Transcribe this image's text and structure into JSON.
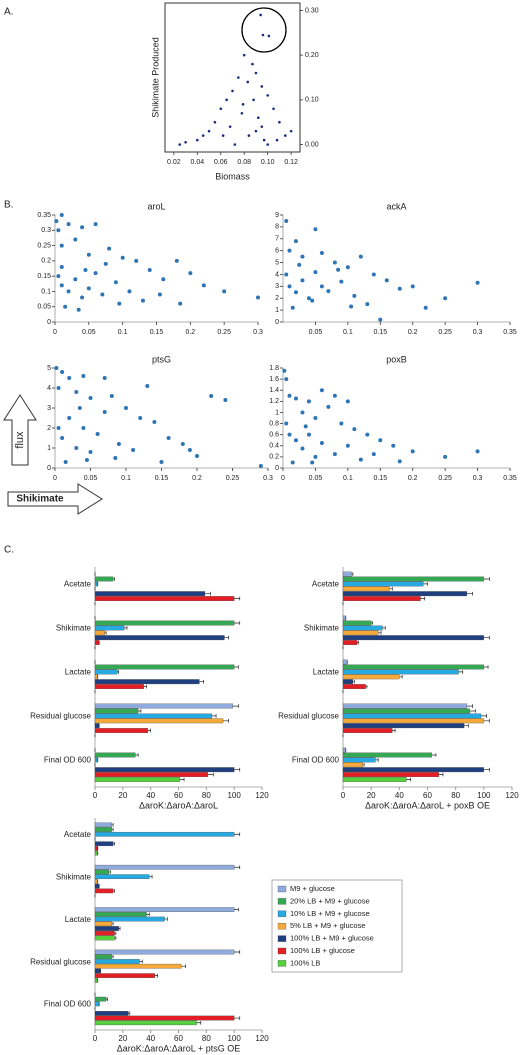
{
  "axis_arrows": {
    "y": "flux",
    "x": "Shikimate"
  },
  "chart_data": [
    {
      "type": "scatter",
      "panel_label": "A.",
      "x_label": "Biomass",
      "y_label": "Shikimate Produced",
      "y_axis_side": "right",
      "frame": true,
      "color": "#1a2a80",
      "xlim": [
        0.015,
        0.125
      ],
      "ylim": [
        -0.01,
        0.31
      ],
      "xticks": [
        0.02,
        0.04,
        0.06,
        0.08,
        {
          "value": 0.1,
          "label": "0.10"
        },
        0.12
      ],
      "yticks": [
        {
          "value": 0,
          "label": "0.00"
        },
        {
          "value": 0.1,
          "label": "0.10"
        },
        {
          "value": 0.2,
          "label": "0.20"
        },
        {
          "value": 0.3,
          "label": "0.30"
        }
      ],
      "x": [
        0.094,
        0.096,
        0.101,
        0.08,
        0.087,
        0.09,
        0.075,
        0.083,
        0.095,
        0.07,
        0.1,
        0.065,
        0.088,
        0.105,
        0.06,
        0.078,
        0.092,
        0.11,
        0.055,
        0.05,
        0.045,
        0.04,
        0.03,
        0.025,
        0.115,
        0.12,
        0.068,
        0.084,
        0.097,
        0.072,
        0.1,
        0.09,
        0.062,
        0.108,
        0.079,
        0.095
      ],
      "y": [
        0.29,
        0.245,
        0.243,
        0.2,
        0.18,
        0.16,
        0.15,
        0.14,
        0.13,
        0.12,
        0.11,
        0.1,
        0.1,
        0.08,
        0.08,
        0.07,
        0.06,
        0.05,
        0.05,
        0.03,
        0.02,
        0.01,
        0.005,
        0,
        0.02,
        0.03,
        0.04,
        0.02,
        0.01,
        0,
        0,
        0.03,
        0.02,
        0.01,
        0.09,
        0.04
      ]
    },
    {
      "type": "scatter",
      "panel_label": "B.",
      "title": "aroL",
      "color": "#2e75b6",
      "xlim": [
        0,
        0.3
      ],
      "ylim": [
        0,
        0.35
      ],
      "xticks": [
        0,
        0.05,
        0.1,
        0.15,
        0.2,
        0.25,
        0.3
      ],
      "yticks": [
        0,
        0.05,
        0.1,
        0.15,
        0.2,
        0.25,
        0.3,
        0.35
      ],
      "x": [
        0.002,
        0.01,
        0.005,
        0.02,
        0.04,
        0.06,
        0.01,
        0.03,
        0.05,
        0.08,
        0.1,
        0.12,
        0.14,
        0.16,
        0.18,
        0.2,
        0.22,
        0.3,
        0.25,
        0.005,
        0.01,
        0.02,
        0.03,
        0.04,
        0.05,
        0.06,
        0.07,
        0.09,
        0.11,
        0.13,
        0.015,
        0.035,
        0.01,
        0.045,
        0.075,
        0.095,
        0.155,
        0.185
      ],
      "y": [
        0.33,
        0.35,
        0.3,
        0.32,
        0.31,
        0.32,
        0.25,
        0.27,
        0.22,
        0.24,
        0.21,
        0.2,
        0.17,
        0.14,
        0.2,
        0.16,
        0.12,
        0.08,
        0.1,
        0.15,
        0.12,
        0.1,
        0.14,
        0.08,
        0.11,
        0.16,
        0.09,
        0.13,
        0.1,
        0.07,
        0.05,
        0.04,
        0.18,
        0.17,
        0.19,
        0.06,
        0.09,
        0.06
      ]
    },
    {
      "type": "scatter",
      "title": "ackA",
      "color": "#2e75b6",
      "xlim": [
        0,
        0.35
      ],
      "ylim": [
        0,
        9
      ],
      "xticks": [
        0.05,
        0.1,
        0.15,
        0.2,
        0.25,
        0.3,
        0.35
      ],
      "yticks": [
        0,
        1,
        2,
        3,
        4,
        5,
        6,
        7,
        8,
        9
      ],
      "x": [
        0.005,
        0.02,
        0.05,
        0.01,
        0.03,
        0.06,
        0.08,
        0.1,
        0.12,
        0.14,
        0.16,
        0.18,
        0.2,
        0.25,
        0.3,
        0.15,
        0.005,
        0.01,
        0.02,
        0.03,
        0.04,
        0.05,
        0.06,
        0.07,
        0.09,
        0.11,
        0.13,
        0.015,
        0.025,
        0.045,
        0.085,
        0.105,
        0.22
      ],
      "y": [
        8.5,
        6.8,
        7.8,
        6,
        5.5,
        5.8,
        5,
        4.6,
        5.5,
        4,
        3.5,
        2.8,
        3,
        2,
        3.3,
        0.2,
        4,
        3,
        2.5,
        3.5,
        2,
        4.2,
        3,
        2.6,
        3.4,
        2.2,
        1.5,
        1.2,
        4.8,
        1.8,
        4.4,
        1.3,
        1.2
      ]
    },
    {
      "type": "scatter",
      "title": "ptsG",
      "color": "#2e75b6",
      "xlim": [
        0,
        0.3
      ],
      "ylim": [
        0,
        5
      ],
      "xticks": [
        0,
        0.05,
        0.1,
        0.15,
        0.2,
        0.25,
        0.3
      ],
      "yticks": [
        0,
        1,
        2,
        3,
        4,
        5
      ],
      "x": [
        0.002,
        0.01,
        0.02,
        0.04,
        0.07,
        0.005,
        0.03,
        0.05,
        0.08,
        0.1,
        0.12,
        0.14,
        0.13,
        0.16,
        0.18,
        0.2,
        0.22,
        0.24,
        0.29,
        0.005,
        0.01,
        0.02,
        0.03,
        0.04,
        0.05,
        0.06,
        0.07,
        0.09,
        0.11,
        0.015,
        0.035,
        0.045,
        0.085,
        0.15,
        0.19
      ],
      "y": [
        5,
        4.8,
        4.5,
        4.6,
        4.5,
        4,
        3.8,
        3.5,
        3.6,
        3,
        2.5,
        2.3,
        4.1,
        1.5,
        1.2,
        0.6,
        3.6,
        3.4,
        0.1,
        2,
        1.5,
        2.5,
        1,
        2,
        0.8,
        1.7,
        2.8,
        1.2,
        0.9,
        0.3,
        3,
        0.4,
        0.5,
        0.3,
        0.9
      ]
    },
    {
      "type": "scatter",
      "title": "poxB",
      "color": "#2e75b6",
      "xlim": [
        0,
        0.35
      ],
      "ylim": [
        0,
        1.8
      ],
      "xticks": [
        0,
        0.05,
        0.1,
        0.15,
        0.2,
        0.25,
        0.3,
        0.35
      ],
      "yticks": [
        0,
        0.2,
        0.4,
        0.6,
        0.8,
        1,
        1.2,
        1.4,
        1.6,
        1.8
      ],
      "x": [
        0.002,
        0.005,
        0.01,
        0.02,
        0.04,
        0.06,
        0.08,
        0.1,
        0.07,
        0.03,
        0.05,
        0.09,
        0.11,
        0.13,
        0.15,
        0.17,
        0.2,
        0.25,
        0.3,
        0.005,
        0.01,
        0.02,
        0.03,
        0.04,
        0.05,
        0.06,
        0.08,
        0.1,
        0.12,
        0.015,
        0.035,
        0.045,
        0.14,
        0.18
      ],
      "y": [
        1.75,
        1.6,
        1.3,
        1.25,
        1.2,
        1.4,
        1.3,
        1.2,
        1.1,
        1,
        0.9,
        0.8,
        0.7,
        0.6,
        0.5,
        0.4,
        0.3,
        0.2,
        0.3,
        0.8,
        0.6,
        0.5,
        0.35,
        0.6,
        0.2,
        0.45,
        0.25,
        0.4,
        0.15,
        0.1,
        0.75,
        0.1,
        0.25,
        0.12
      ]
    },
    {
      "type": "bar",
      "panel_label": "C.",
      "orientation": "horizontal",
      "x_label": "ΔaroK:ΔaroA:ΔaroL",
      "categories": [
        "Acetate",
        "Shikimate",
        "Lactate",
        "Residual glucose",
        "Final OD 600"
      ],
      "xlim": [
        0,
        120
      ],
      "xticks": [
        0,
        20,
        40,
        60,
        80,
        100,
        120
      ],
      "series": [
        {
          "color": "#8faadc",
          "values": [
            0,
            0,
            0,
            99,
            0
          ],
          "errors": [
            0,
            0,
            0,
            4,
            0
          ]
        },
        {
          "color": "#34a853",
          "values": [
            13,
            100,
            100,
            31,
            29
          ],
          "errors": [
            1,
            4,
            3,
            2,
            2
          ]
        },
        {
          "color": "#27aae1",
          "values": [
            2,
            21,
            16,
            84,
            2
          ],
          "errors": [
            0,
            2,
            1,
            3,
            0
          ]
        },
        {
          "color": "#f4a93a",
          "values": [
            0,
            7,
            2,
            92,
            0
          ],
          "errors": [
            0,
            1,
            0,
            4,
            0
          ]
        },
        {
          "color": "#1f3f7f",
          "values": [
            79,
            93,
            75,
            3,
            100
          ],
          "errors": [
            4,
            3,
            3,
            0,
            4
          ]
        },
        {
          "color": "#e31e24",
          "values": [
            100,
            3,
            35,
            38,
            81
          ],
          "errors": [
            4,
            0,
            2,
            2,
            4
          ]
        },
        {
          "color": "#56d13e",
          "values": [
            0,
            0,
            0,
            0,
            61
          ],
          "errors": [
            0,
            0,
            0,
            0,
            3
          ]
        }
      ]
    },
    {
      "type": "bar",
      "orientation": "horizontal",
      "x_label": "ΔaroK:ΔaroA:ΔaroL + poxB OE",
      "categories": [
        "Acetate",
        "Shikimate",
        "Lactate",
        "Residual glucose",
        "Final OD 600"
      ],
      "xlim": [
        0,
        120
      ],
      "xticks": [
        0,
        20,
        40,
        60,
        80,
        100,
        120
      ],
      "series": [
        {
          "color": "#8faadc",
          "values": [
            6,
            2,
            3,
            88,
            2
          ],
          "errors": [
            1,
            0,
            0,
            4,
            0
          ]
        },
        {
          "color": "#34a853",
          "values": [
            100,
            20,
            100,
            90,
            63
          ],
          "errors": [
            4,
            1,
            3,
            4,
            3
          ]
        },
        {
          "color": "#27aae1",
          "values": [
            57,
            28,
            82,
            98,
            23
          ],
          "errors": [
            3,
            2,
            3,
            4,
            2
          ]
        },
        {
          "color": "#f4a93a",
          "values": [
            33,
            25,
            40,
            100,
            14
          ],
          "errors": [
            2,
            2,
            2,
            4,
            1
          ]
        },
        {
          "color": "#1f3f7f",
          "values": [
            88,
            100,
            7,
            86,
            100
          ],
          "errors": [
            4,
            4,
            1,
            3,
            4
          ]
        },
        {
          "color": "#e31e24",
          "values": [
            55,
            10,
            16,
            35,
            68
          ],
          "errors": [
            3,
            1,
            1,
            2,
            3
          ]
        },
        {
          "color": "#56d13e",
          "values": [
            0,
            0,
            0,
            0,
            45
          ],
          "errors": [
            0,
            0,
            0,
            0,
            3
          ]
        }
      ]
    },
    {
      "type": "bar",
      "orientation": "horizontal",
      "x_label": "ΔaroK:ΔaroA:ΔaroL + ptsG OE",
      "legend": "right",
      "categories": [
        "Acetate",
        "Shikimate",
        "Lactate",
        "Residual glucose",
        "Final OD 600"
      ],
      "xlim": [
        0,
        120
      ],
      "xticks": [
        0,
        20,
        40,
        60,
        80,
        100,
        120
      ],
      "series": [
        {
          "name": "M9 + glucose",
          "color": "#8faadc",
          "values": [
            12,
            100,
            100,
            100,
            0
          ],
          "errors": [
            1,
            4,
            3,
            4,
            0
          ]
        },
        {
          "name": "20% LB + M9 + glucose",
          "color": "#34a853",
          "values": [
            12,
            10,
            37,
            12,
            8
          ],
          "errors": [
            1,
            1,
            2,
            1,
            1
          ]
        },
        {
          "name": "10% LB + M9 + glucose",
          "color": "#27aae1",
          "values": [
            100,
            39,
            50,
            32,
            3
          ],
          "errors": [
            4,
            2,
            2,
            2,
            0
          ]
        },
        {
          "name": "5% LB + M9 + glucose",
          "color": "#f4a93a",
          "values": [
            0,
            2,
            12,
            62,
            0
          ],
          "errors": [
            0,
            0,
            1,
            3,
            0
          ]
        },
        {
          "name": "100% LB + M9 + glucose",
          "color": "#1f3f7f",
          "values": [
            13,
            3,
            17,
            4,
            24
          ],
          "errors": [
            1,
            0,
            1,
            0,
            1
          ]
        },
        {
          "name": "100% LB + glucose",
          "color": "#e31e24",
          "values": [
            2,
            13,
            14,
            43,
            100
          ],
          "errors": [
            0,
            1,
            1,
            2,
            4
          ]
        },
        {
          "name": "100% LB",
          "color": "#56d13e",
          "values": [
            2,
            0,
            14,
            2,
            73
          ],
          "errors": [
            0,
            0,
            1,
            0,
            3
          ]
        }
      ]
    }
  ]
}
